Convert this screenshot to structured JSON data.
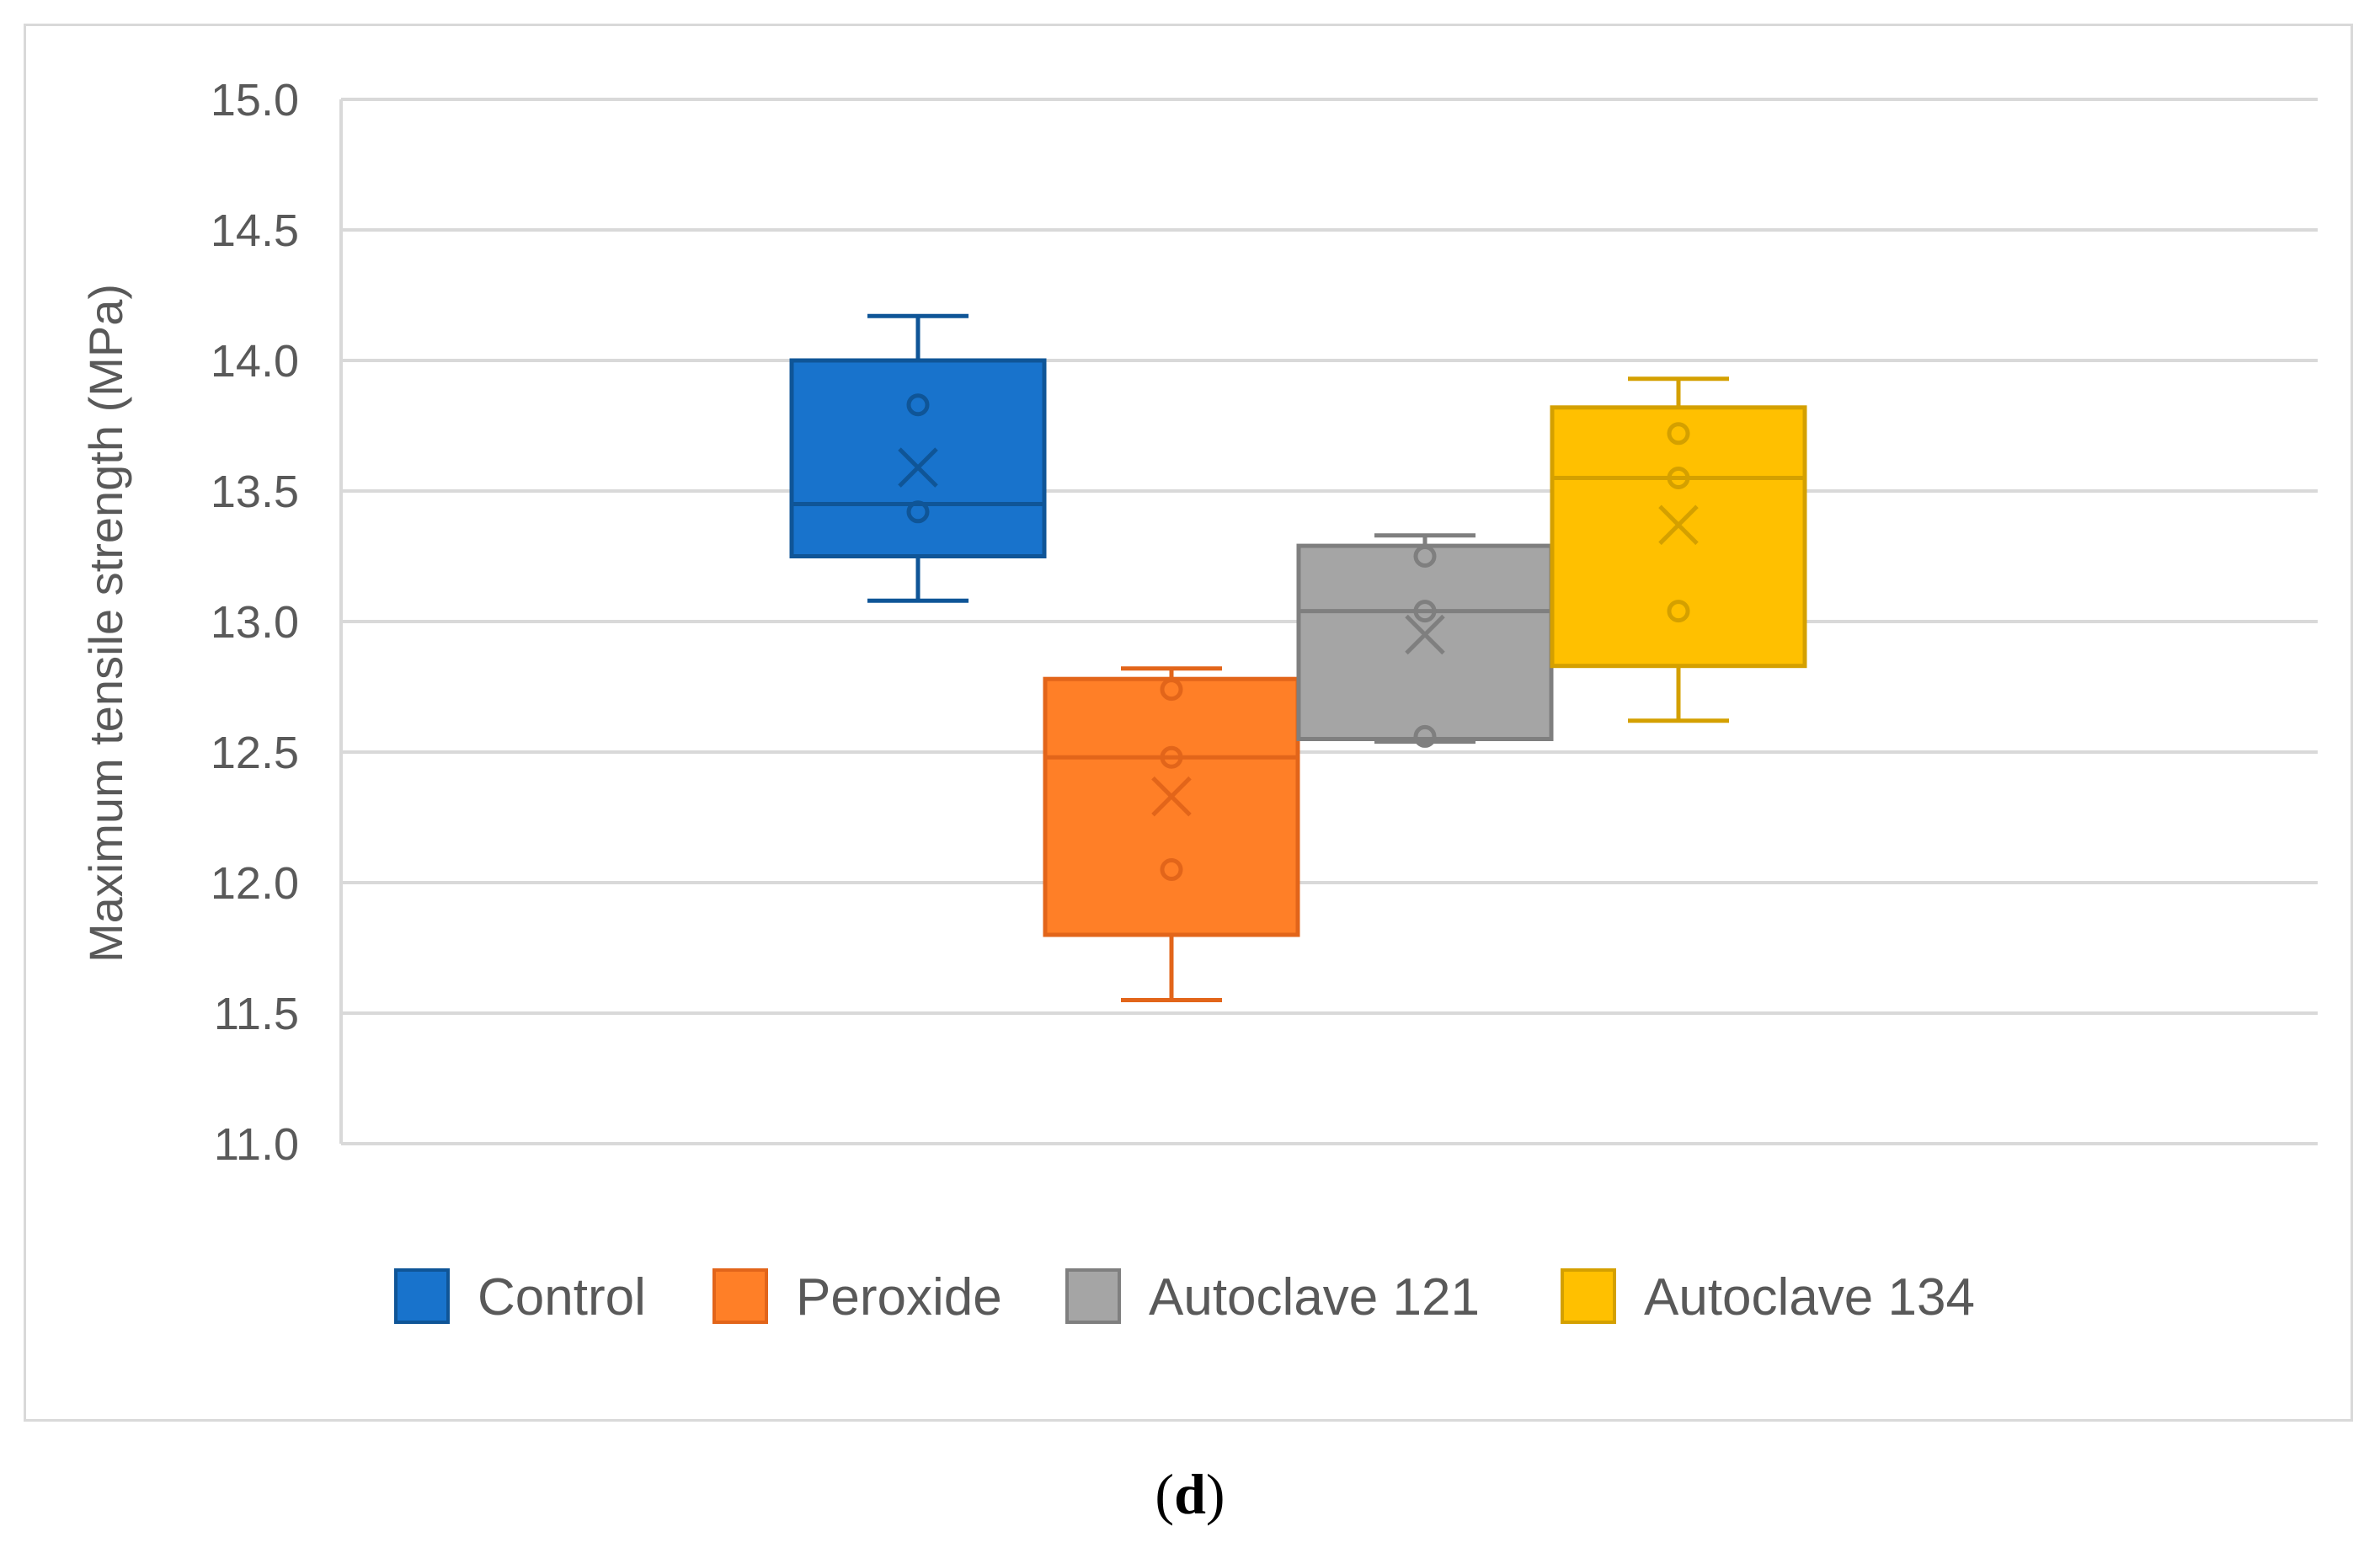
{
  "caption": {
    "open": "(",
    "letter": "d",
    "close": ")"
  },
  "chart_data": {
    "type": "box",
    "ylabel": "Maximum tensile strength (MPa)",
    "xlabel": "",
    "ylim": [
      11.0,
      15.0
    ],
    "yticks": [
      11.0,
      11.5,
      12.0,
      12.5,
      13.0,
      13.5,
      14.0,
      14.5,
      15.0
    ],
    "ytick_labels": [
      "11.0",
      "11.5",
      "12.0",
      "12.5",
      "13.0",
      "13.5",
      "14.0",
      "14.5",
      "15.0"
    ],
    "grid": true,
    "legend_position": "bottom",
    "series": [
      {
        "name": "Control",
        "fill": "#1873CC",
        "stroke": "#0F5597",
        "whisker_low": 13.08,
        "q1": 13.25,
        "median": 13.45,
        "q3": 14.0,
        "whisker_high": 14.17,
        "mean": 13.59,
        "points": [
          13.42,
          13.83
        ]
      },
      {
        "name": "Peroxide",
        "fill": "#FF7F27",
        "stroke": "#E2651A",
        "whisker_low": 11.55,
        "q1": 11.8,
        "median": 12.48,
        "q3": 12.78,
        "whisker_high": 12.82,
        "mean": 12.33,
        "points": [
          12.05,
          12.48,
          12.74
        ]
      },
      {
        "name": "Autoclave 121",
        "fill": "#A5A5A5",
        "stroke": "#7F7F7F",
        "whisker_low": 12.54,
        "q1": 12.55,
        "median": 13.04,
        "q3": 13.29,
        "whisker_high": 13.33,
        "mean": 12.95,
        "points": [
          12.56,
          13.04,
          13.25
        ]
      },
      {
        "name": "Autoclave 134",
        "fill": "#FFC000",
        "stroke": "#D4A000",
        "whisker_low": 12.62,
        "q1": 12.83,
        "median": 13.55,
        "q3": 13.82,
        "whisker_high": 13.93,
        "mean": 13.37,
        "points": [
          13.04,
          13.55,
          13.72
        ]
      }
    ]
  }
}
